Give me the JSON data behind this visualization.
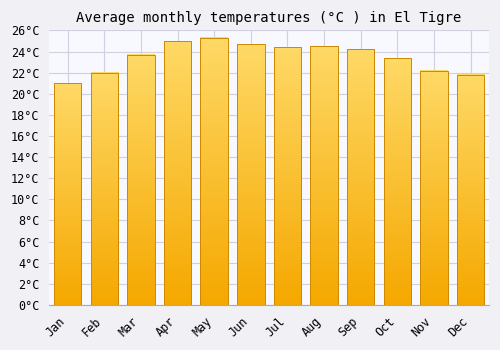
{
  "title": "Average monthly temperatures (°C ) in El Tigre",
  "months": [
    "Jan",
    "Feb",
    "Mar",
    "Apr",
    "May",
    "Jun",
    "Jul",
    "Aug",
    "Sep",
    "Oct",
    "Nov",
    "Dec"
  ],
  "values": [
    21.0,
    22.0,
    23.7,
    25.0,
    25.3,
    24.7,
    24.4,
    24.5,
    24.2,
    23.4,
    22.2,
    21.8
  ],
  "bar_color_bottom": "#F5A800",
  "bar_color_top": "#FFD966",
  "bar_edge_color": "#CC8800",
  "background_color": "#f0f0f5",
  "plot_bg_color": "#f8f8ff",
  "grid_color": "#d0d0e0",
  "ylim": [
    0,
    26
  ],
  "ytick_step": 2,
  "title_fontsize": 10,
  "tick_fontsize": 8.5,
  "font_family": "monospace"
}
